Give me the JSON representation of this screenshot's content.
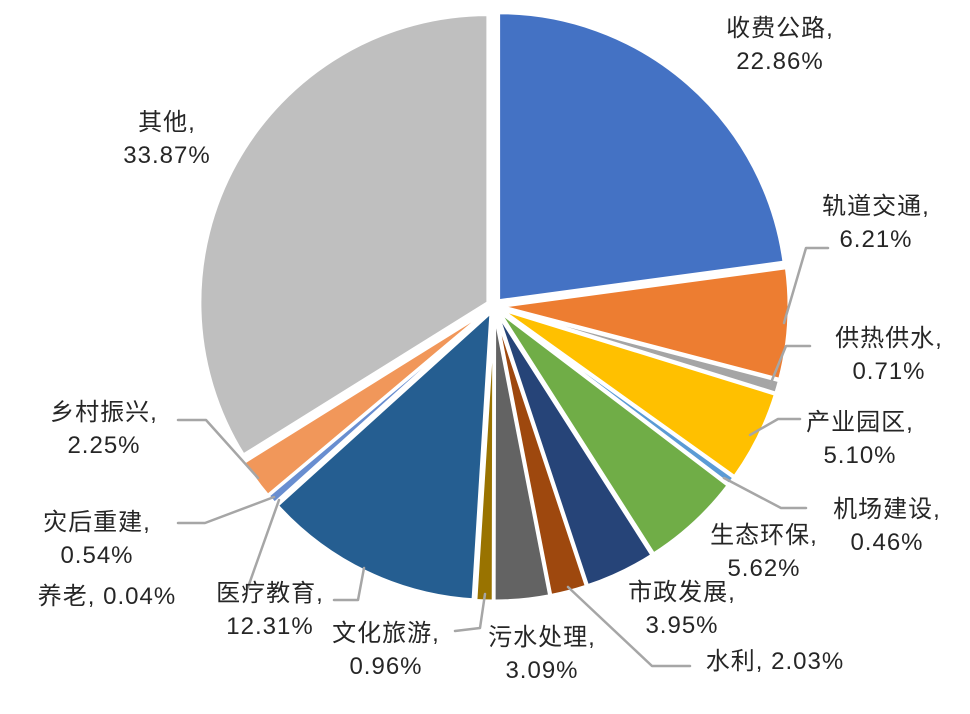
{
  "chart_data": {
    "type": "pie",
    "title": "",
    "legend": "none",
    "total": 100.0,
    "start_angle_deg": 0,
    "direction": "clockwise",
    "label_style": "category-name-and-percent-outside-with-leader-lines",
    "background_color": "#ffffff",
    "leader_line_color": "#a6a6a6",
    "slice_border_color": "#ffffff",
    "categories": [
      "收费公路",
      "轨道交通",
      "供热供水",
      "产业园区",
      "机场建设",
      "生态环保",
      "市政发展",
      "水利",
      "污水处理",
      "文化旅游",
      "医疗教育",
      "养老",
      "灾后重建",
      "乡村振兴",
      "其他"
    ],
    "values": [
      22.86,
      6.21,
      0.71,
      5.1,
      0.46,
      5.62,
      3.95,
      2.03,
      3.09,
      0.96,
      12.31,
      0.04,
      0.54,
      2.25,
      33.87
    ],
    "slices": [
      {
        "id": "toll-roads",
        "label": "收费公路",
        "value": 22.86,
        "color": "#4472C4",
        "label_lines": [
          "收费公路,",
          "22.86%"
        ]
      },
      {
        "id": "rail-transit",
        "label": "轨道交通",
        "value": 6.21,
        "color": "#ED7D31",
        "label_lines": [
          "轨道交通,",
          "6.21%"
        ]
      },
      {
        "id": "heating-water-supply",
        "label": "供热供水",
        "value": 0.71,
        "color": "#A5A5A5",
        "label_lines": [
          "供热供水,",
          "0.71%"
        ]
      },
      {
        "id": "industrial-parks",
        "label": "产业园区",
        "value": 5.1,
        "color": "#FFC000",
        "label_lines": [
          "产业园区,",
          "5.10%"
        ]
      },
      {
        "id": "airport-construction",
        "label": "机场建设",
        "value": 0.46,
        "color": "#5B9BD5",
        "label_lines": [
          "机场建设,",
          "0.46%"
        ]
      },
      {
        "id": "eco-environment",
        "label": "生态环保",
        "value": 5.62,
        "color": "#70AD47",
        "label_lines": [
          "生态环保,",
          "5.62%"
        ]
      },
      {
        "id": "municipal-development",
        "label": "市政发展",
        "value": 3.95,
        "color": "#264478",
        "label_lines": [
          "市政发展,",
          "3.95%"
        ]
      },
      {
        "id": "water-conservancy",
        "label": "水利",
        "value": 2.03,
        "color": "#9E480E",
        "label_lines": [
          "水利, 2.03%"
        ]
      },
      {
        "id": "sewage-treatment",
        "label": "污水处理",
        "value": 3.09,
        "color": "#636363",
        "label_lines": [
          "污水处理,",
          "3.09%"
        ]
      },
      {
        "id": "culture-tourism",
        "label": "文化旅游",
        "value": 0.96,
        "color": "#997300",
        "label_lines": [
          "文化旅游,",
          "0.96%"
        ]
      },
      {
        "id": "medical-education",
        "label": "医疗教育",
        "value": 12.31,
        "color": "#255E91",
        "label_lines": [
          "医疗教育,",
          "12.31%"
        ]
      },
      {
        "id": "elderly-care",
        "label": "养老",
        "value": 0.04,
        "color": "#43682B",
        "label_lines": [
          "养老, 0.04%"
        ]
      },
      {
        "id": "disaster-reconstruction",
        "label": "灾后重建",
        "value": 0.54,
        "color": "#698ED0",
        "label_lines": [
          "灾后重建,",
          "0.54%"
        ]
      },
      {
        "id": "rural-revitalization",
        "label": "乡村振兴",
        "value": 2.25,
        "color": "#F1975A",
        "label_lines": [
          "乡村振兴,",
          "2.25%"
        ]
      },
      {
        "id": "other",
        "label": "其他",
        "value": 33.87,
        "color": "#BFBFBF",
        "label_lines": [
          "其他,",
          "33.87%"
        ]
      }
    ]
  }
}
